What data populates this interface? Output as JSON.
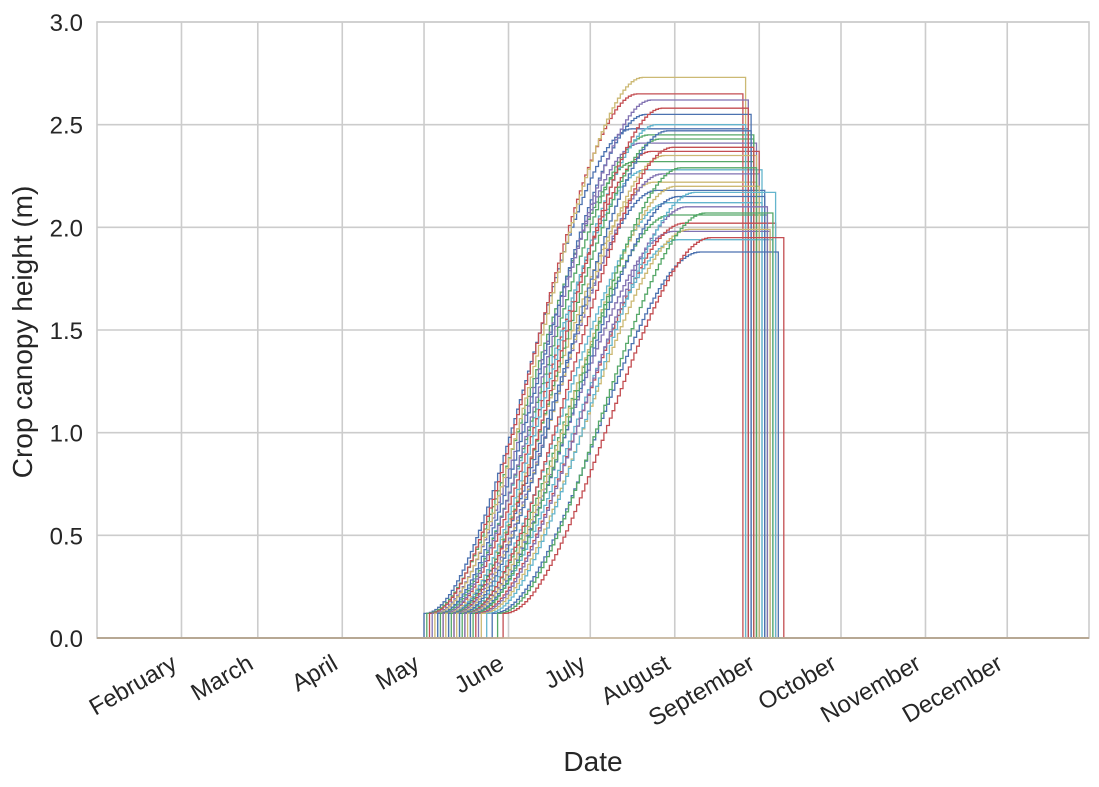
{
  "chart_data": {
    "type": "line",
    "xlabel": "Date",
    "ylabel": "Crop canopy height (m)",
    "ylim": [
      0,
      3.0
    ],
    "xlim": [
      "2015-01-01",
      "2015-12-31"
    ],
    "y_ticks": [
      "0.0",
      "0.5",
      "1.0",
      "1.5",
      "2.0",
      "2.5",
      "3.0"
    ],
    "x_ticks": [
      {
        "date": "2015-02-01",
        "label": "February"
      },
      {
        "date": "2015-03-01",
        "label": "March"
      },
      {
        "date": "2015-04-01",
        "label": "April"
      },
      {
        "date": "2015-05-01",
        "label": "May"
      },
      {
        "date": "2015-06-01",
        "label": "June"
      },
      {
        "date": "2015-07-01",
        "label": "July"
      },
      {
        "date": "2015-08-01",
        "label": "August"
      },
      {
        "date": "2015-09-01",
        "label": "September"
      },
      {
        "date": "2015-10-01",
        "label": "October"
      },
      {
        "date": "2015-11-01",
        "label": "November"
      },
      {
        "date": "2015-12-01",
        "label": "December"
      }
    ],
    "grid": true,
    "legend": "none",
    "colors": [
      "#4C72B0",
      "#55A868",
      "#C44E52",
      "#8172B2",
      "#CCB974",
      "#64B5CD"
    ],
    "series": [
      {
        "emergence": "2015-05-01",
        "end": "2015-08-28",
        "max_height": 2.48
      },
      {
        "emergence": "2015-05-02",
        "end": "2015-08-30",
        "max_height": 2.32
      },
      {
        "emergence": "2015-05-03",
        "end": "2015-08-26",
        "max_height": 2.65
      },
      {
        "emergence": "2015-05-04",
        "end": "2015-08-31",
        "max_height": 2.41
      },
      {
        "emergence": "2015-05-05",
        "end": "2015-08-27",
        "max_height": 2.73
      },
      {
        "emergence": "2015-05-06",
        "end": "2015-09-02",
        "max_height": 2.28
      },
      {
        "emergence": "2015-05-06",
        "end": "2015-08-29",
        "max_height": 2.55
      },
      {
        "emergence": "2015-05-07",
        "end": "2015-08-30",
        "max_height": 2.45
      },
      {
        "emergence": "2015-05-08",
        "end": "2015-09-01",
        "max_height": 2.37
      },
      {
        "emergence": "2015-05-08",
        "end": "2015-08-28",
        "max_height": 2.62
      },
      {
        "emergence": "2015-05-09",
        "end": "2015-08-31",
        "max_height": 2.22
      },
      {
        "emergence": "2015-05-10",
        "end": "2015-08-27",
        "max_height": 2.5
      },
      {
        "emergence": "2015-05-10",
        "end": "2015-09-03",
        "max_height": 2.18
      },
      {
        "emergence": "2015-05-11",
        "end": "2015-08-30",
        "max_height": 2.43
      },
      {
        "emergence": "2015-05-12",
        "end": "2015-08-28",
        "max_height": 2.58
      },
      {
        "emergence": "2015-05-12",
        "end": "2015-09-01",
        "max_height": 2.26
      },
      {
        "emergence": "2015-05-13",
        "end": "2015-08-31",
        "max_height": 2.35
      },
      {
        "emergence": "2015-05-14",
        "end": "2015-09-02",
        "max_height": 2.12
      },
      {
        "emergence": "2015-05-14",
        "end": "2015-08-29",
        "max_height": 2.47
      },
      {
        "emergence": "2015-05-15",
        "end": "2015-09-04",
        "max_height": 2.06
      },
      {
        "emergence": "2015-05-16",
        "end": "2015-08-30",
        "max_height": 2.39
      },
      {
        "emergence": "2015-05-16",
        "end": "2015-09-05",
        "max_height": 1.98
      },
      {
        "emergence": "2015-05-17",
        "end": "2015-09-01",
        "max_height": 2.2
      },
      {
        "emergence": "2015-05-18",
        "end": "2015-09-06",
        "max_height": 1.94
      },
      {
        "emergence": "2015-05-18",
        "end": "2015-09-03",
        "max_height": 2.15
      },
      {
        "emergence": "2015-05-19",
        "end": "2015-08-31",
        "max_height": 2.29
      },
      {
        "emergence": "2015-05-20",
        "end": "2015-09-07",
        "max_height": 2.02
      },
      {
        "emergence": "2015-05-21",
        "end": "2015-09-04",
        "max_height": 2.1
      },
      {
        "emergence": "2015-05-22",
        "end": "2015-09-05",
        "max_height": 1.99
      },
      {
        "emergence": "2015-05-24",
        "end": "2015-09-07",
        "max_height": 2.17
      },
      {
        "emergence": "2015-05-26",
        "end": "2015-09-08",
        "max_height": 1.88
      },
      {
        "emergence": "2015-05-28",
        "end": "2015-09-06",
        "max_height": 2.07
      },
      {
        "emergence": "2015-05-30",
        "end": "2015-09-10",
        "max_height": 1.95
      }
    ]
  }
}
